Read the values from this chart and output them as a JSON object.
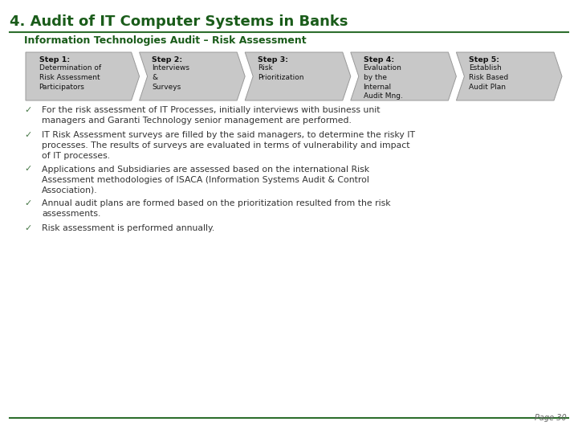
{
  "title": "4. Audit of IT Computer Systems in Banks",
  "subtitle": "Information Technologies Audit – Risk Assessment",
  "title_color": "#1a5c1a",
  "subtitle_color": "#1a5c1a",
  "bg_color": "#ffffff",
  "arrow_fill": "#c8c8c8",
  "arrow_edge": "#999999",
  "steps": [
    {
      "bold": "Step 1:",
      "text": "Determination of\nRisk Assessment\nParticipators"
    },
    {
      "bold": "Step 2:",
      "text": "Interviews\n&\nSurveys"
    },
    {
      "bold": "Step 3:",
      "text": "Risk\nPrioritization"
    },
    {
      "bold": "Step 4:",
      "text": "Evaluation\nby the\nInternal\nAudit Mng."
    },
    {
      "bold": "Step 5:",
      "text": "Establish\nRisk Based\nAudit Plan"
    }
  ],
  "bullets": [
    "For the risk assessment of IT Processes, initially interviews with business unit\nmanagers and Garanti Technology senior management are performed.",
    "IT Risk Assessment surveys are filled by the said managers, to determine the risky IT\nprocesses. The results of surveys are evaluated in terms of vulnerability and impact\nof IT processes.",
    "Applications and Subsidiaries are assessed based on the international Risk\nAssessment methodologies of ISACA (Information Systems Audit & Control\nAssociation).",
    "Annual audit plans are formed based on the prioritization resulted from the risk\nassessments.",
    "Risk assessment is performed annually."
  ],
  "bullet_color": "#4a7a4a",
  "text_color": "#333333",
  "page_label": "Page 30",
  "line_color": "#2d6e2d"
}
